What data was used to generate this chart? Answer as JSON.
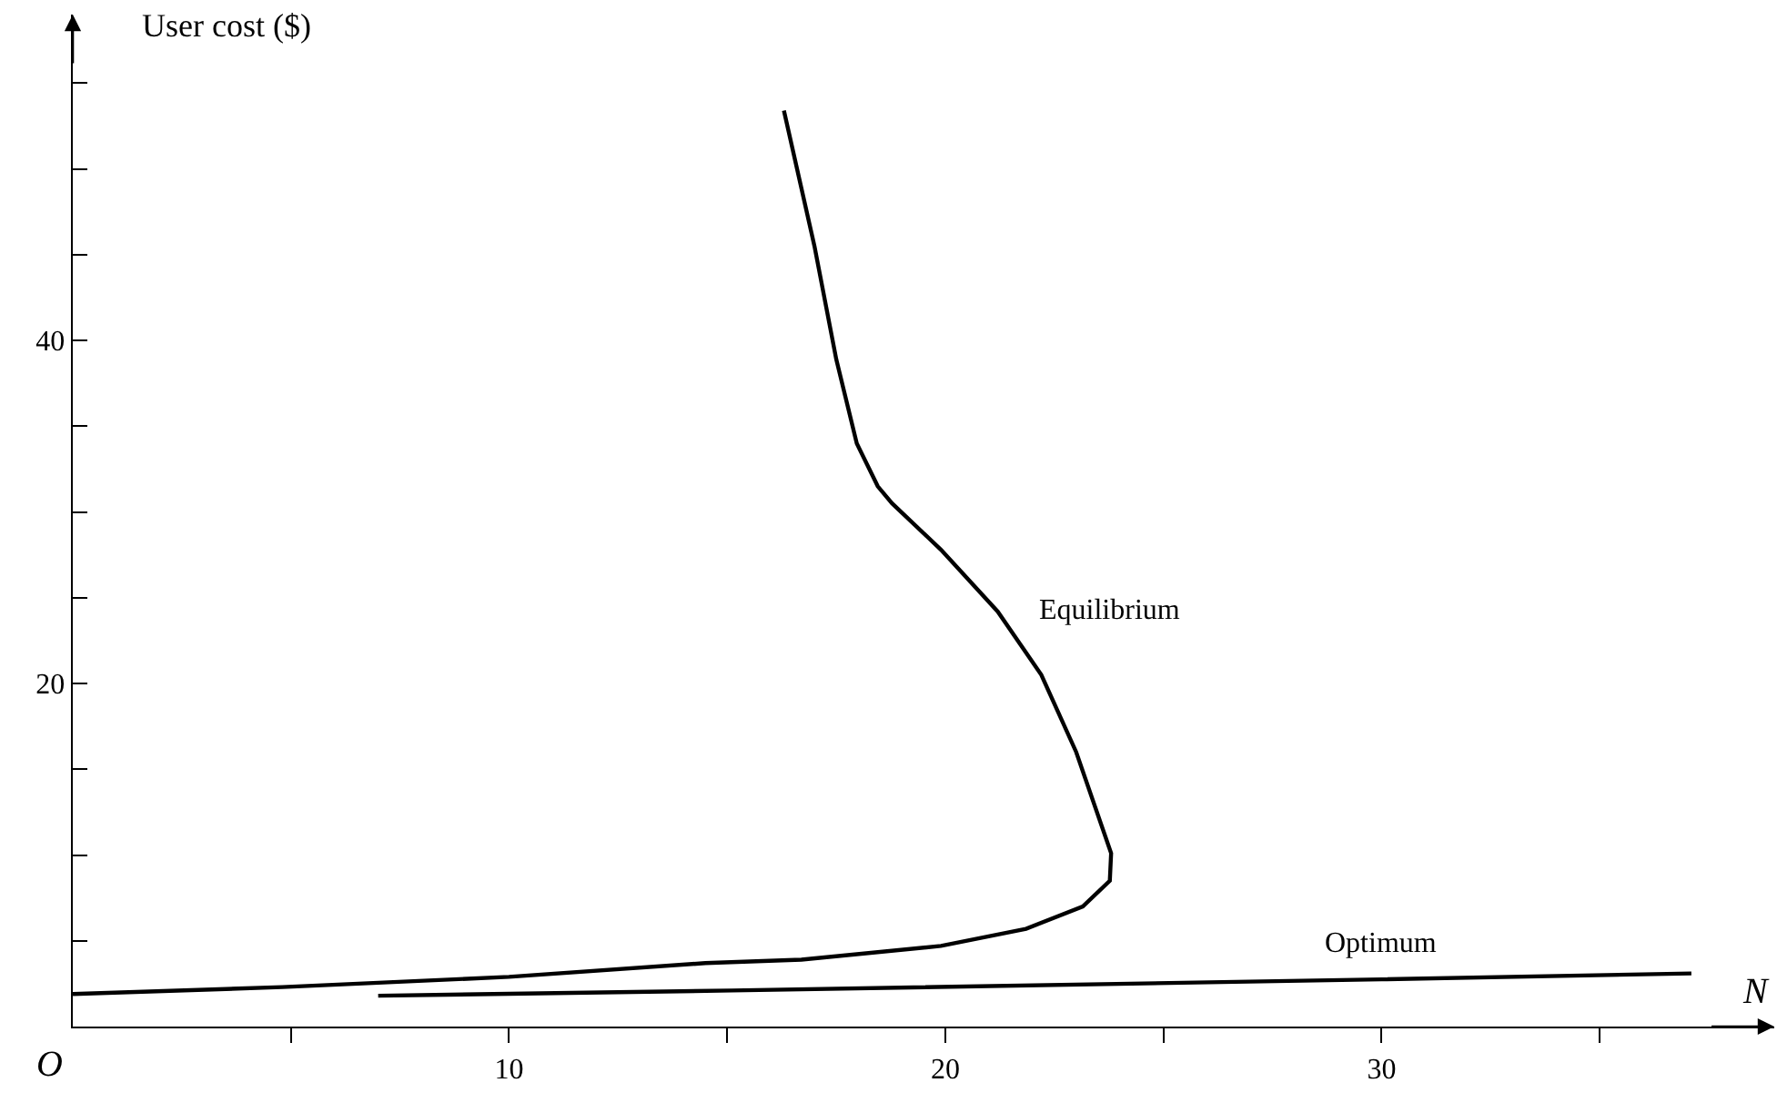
{
  "chart_data": {
    "type": "line",
    "xlabel": "N",
    "ylabel": "User cost ($)",
    "annotations": [
      "O"
    ],
    "xlim": [
      0,
      39
    ],
    "ylim": [
      0,
      59
    ],
    "xticks": [
      {
        "value": 5,
        "label": null
      },
      10,
      {
        "value": 15,
        "label": null
      },
      20,
      {
        "value": 25,
        "label": null
      },
      30,
      {
        "value": 35,
        "label": null
      }
    ],
    "yticks": [
      {
        "value": 5,
        "label": null
      },
      {
        "value": 10,
        "label": null
      },
      {
        "value": 15,
        "label": null
      },
      20,
      {
        "value": 25,
        "label": null
      },
      {
        "value": 30,
        "label": null
      },
      {
        "value": 35,
        "label": null
      },
      40,
      {
        "value": 45,
        "label": null
      },
      {
        "value": 50,
        "label": null
      },
      {
        "value": 55,
        "label": null
      }
    ],
    "grid": false,
    "legend": false,
    "marker": "none",
    "line_style": "solid",
    "series": [
      {
        "name": "Equilibrium",
        "color": "#000000",
        "x": [
          0,
          4.8,
          10,
          14.5,
          16.7,
          19.9,
          21.85,
          23.15,
          23.77,
          23.8,
          23,
          22.2,
          21.2,
          19.9,
          18.78,
          18.45,
          17.97,
          17.5,
          17,
          16.3
        ],
        "values": [
          1.9,
          2.3,
          2.9,
          3.7,
          3.9,
          4.7,
          5.7,
          7,
          8.5,
          10.1,
          16,
          20.5,
          24.2,
          27.8,
          30.5,
          31.5,
          34,
          38.9,
          45.5,
          53.4
        ]
      },
      {
        "name": "Optimum",
        "color": "#000000",
        "x": [
          7,
          15.1,
          30,
          37.1
        ],
        "values": [
          1.8,
          2.1,
          2.75,
          3.1
        ]
      }
    ]
  }
}
